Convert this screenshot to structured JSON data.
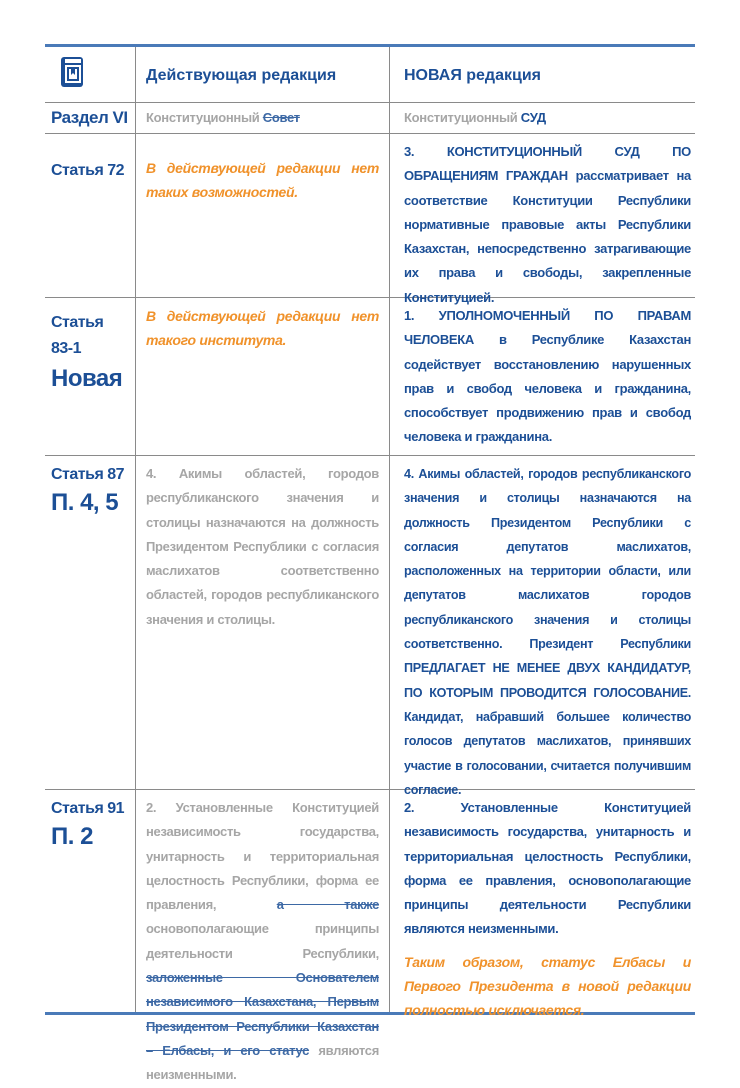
{
  "header": {
    "icon": "book-icon",
    "col_current": "Действующая редакция",
    "col_new": "НОВАЯ редакция"
  },
  "colors": {
    "blue": "#1c4f96",
    "orange": "#f0922b",
    "grey": "#a6a6a6"
  },
  "rows": [
    {
      "label": "Раздел VI",
      "current": {
        "text": "Конституционный",
        "struck": "Совет"
      },
      "new": {
        "text": "Конституционный",
        "emph": "СУД"
      }
    },
    {
      "label": "Статья 72",
      "current": "В действующей редакции нет таких возможностей.",
      "new": "3. КОНСТИТУЦИОННЫЙ СУД ПО ОБРАЩЕНИЯМ ГРАЖДАН рассматривает на соответствие Конституции Республики нормативные правовые акты Республики Казахстан, непосредственно затрагивающие их права и свободы, закрепленные Конституцией."
    },
    {
      "label": "Статья 83-1",
      "label_big": "Новая",
      "current": "В действующей редакции нет такого института.",
      "new": "1. УПОЛНОМОЧЕННЫЙ ПО ПРАВАМ ЧЕЛОВЕКА в Республике Казахстан содействует восстановлению нарушенных прав и свобод человека и гражданина, способствует продвижению прав и свобод человека и гражданина."
    },
    {
      "label": "Статья 87",
      "label_big": "П. 4, 5",
      "current": "4. Акимы областей, городов республиканского значения и столицы назначаются на должность Президентом Республики с согласия маслихатов соответственно областей, городов республиканского значения и столицы.",
      "new": "4. Акимы областей, городов республиканского значения и столицы назначаются на должность Президентом Республики с согласия депутатов маслихатов, расположенных на территории области, или депутатов маслихатов городов республиканского значения и столицы соответственно. Президент Республики ПРЕДЛАГАЕТ НЕ МЕНЕЕ ДВУХ КАНДИДАТУР, ПО КОТОРЫМ ПРОВОДИТСЯ ГОЛОСОВАНИЕ. Кандидат, набравший большее количество голосов депутатов маслихатов, принявших участие в голосовании, считается получившим согласие."
    },
    {
      "label": "Статья 91",
      "label_big": "П. 2",
      "current": {
        "part1": "2. Установленные Конституцией независимость государства, унитарность и территориальная целостность Республики, форма ее правления,",
        "struck1": "а также",
        "part2": "основополагающие принципы деятельности Республики,",
        "struck2": "заложенные Основателем независимого Казахстана, Первым Президентом Республики Казахстан – Елбасы, и его статус",
        "part3": "являются неизменными."
      },
      "new": "2. Установленные Конституцией независимость государства, унитарность и территориальная целостность Республики, форма ее правления, основополагающие принципы деятельности Республики являются неизменными.",
      "note": "Таким образом, статус Елбасы и Первого Президента в новой редакции полностью исключается."
    }
  ]
}
